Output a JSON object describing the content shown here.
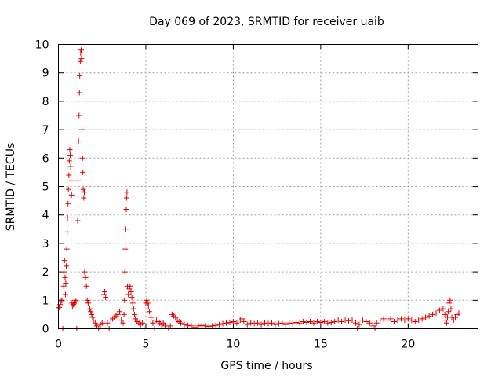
{
  "chart_data": {
    "type": "scatter",
    "title": "Day 069 of 2023, SRMTID for receiver uaib",
    "xlabel": "GPS time / hours",
    "ylabel": "SRMTID / TECUs",
    "xlim": [
      0,
      24
    ],
    "ylim": [
      0,
      10
    ],
    "xticks": [
      0,
      5,
      10,
      15,
      20
    ],
    "yticks": [
      0,
      1,
      2,
      3,
      4,
      5,
      6,
      7,
      8,
      9,
      10
    ],
    "grid": true,
    "marker": "plus",
    "color": "#e00000",
    "series": [
      {
        "name": "SRMTID",
        "points": [
          [
            0.0,
            0.7
          ],
          [
            0.05,
            0.75
          ],
          [
            0.1,
            0.85
          ],
          [
            0.15,
            0.95
          ],
          [
            0.2,
            1.0
          ],
          [
            0.25,
            0.0
          ],
          [
            0.3,
            1.5
          ],
          [
            0.32,
            2.0
          ],
          [
            0.35,
            2.4
          ],
          [
            0.38,
            1.8
          ],
          [
            0.4,
            1.2
          ],
          [
            0.42,
            1.6
          ],
          [
            0.45,
            2.2
          ],
          [
            0.48,
            2.8
          ],
          [
            0.5,
            3.4
          ],
          [
            0.52,
            3.9
          ],
          [
            0.55,
            4.4
          ],
          [
            0.57,
            4.9
          ],
          [
            0.6,
            5.4
          ],
          [
            0.62,
            5.9
          ],
          [
            0.65,
            6.3
          ],
          [
            0.67,
            6.1
          ],
          [
            0.7,
            5.7
          ],
          [
            0.72,
            5.2
          ],
          [
            0.75,
            4.7
          ],
          [
            0.78,
            0.9
          ],
          [
            0.8,
            0.8
          ],
          [
            0.85,
            0.85
          ],
          [
            0.9,
            0.9
          ],
          [
            0.95,
            1.0
          ],
          [
            1.0,
            0.95
          ],
          [
            1.05,
            0.0
          ],
          [
            1.1,
            3.8
          ],
          [
            1.12,
            5.2
          ],
          [
            1.15,
            6.6
          ],
          [
            1.18,
            7.5
          ],
          [
            1.2,
            8.3
          ],
          [
            1.22,
            8.9
          ],
          [
            1.25,
            9.4
          ],
          [
            1.27,
            9.7
          ],
          [
            1.3,
            9.8
          ],
          [
            1.32,
            9.5
          ],
          [
            1.35,
            7.0
          ],
          [
            1.38,
            6.0
          ],
          [
            1.4,
            5.5
          ],
          [
            1.42,
            4.9
          ],
          [
            1.45,
            4.6
          ],
          [
            1.48,
            4.8
          ],
          [
            1.5,
            2.0
          ],
          [
            1.55,
            1.8
          ],
          [
            1.6,
            1.5
          ],
          [
            1.65,
            1.0
          ],
          [
            1.7,
            0.9
          ],
          [
            1.75,
            0.8
          ],
          [
            1.8,
            0.7
          ],
          [
            1.85,
            0.6
          ],
          [
            1.9,
            0.5
          ],
          [
            1.95,
            0.4
          ],
          [
            2.0,
            0.3
          ],
          [
            2.1,
            0.2
          ],
          [
            2.2,
            0.1
          ],
          [
            2.3,
            0.0
          ],
          [
            2.4,
            0.15
          ],
          [
            2.5,
            0.2
          ],
          [
            2.6,
            1.2
          ],
          [
            2.65,
            1.3
          ],
          [
            2.7,
            1.1
          ],
          [
            2.8,
            0.2
          ],
          [
            2.9,
            0.0
          ],
          [
            3.0,
            0.3
          ],
          [
            3.1,
            0.35
          ],
          [
            3.2,
            0.4
          ],
          [
            3.3,
            0.45
          ],
          [
            3.4,
            0.5
          ],
          [
            3.5,
            0.6
          ],
          [
            3.6,
            0.3
          ],
          [
            3.7,
            0.2
          ],
          [
            3.75,
            0.5
          ],
          [
            3.78,
            1.0
          ],
          [
            3.8,
            2.0
          ],
          [
            3.82,
            2.8
          ],
          [
            3.85,
            3.5
          ],
          [
            3.88,
            4.2
          ],
          [
            3.9,
            4.6
          ],
          [
            3.92,
            4.8
          ],
          [
            3.95,
            1.5
          ],
          [
            4.0,
            1.2
          ],
          [
            4.05,
            1.4
          ],
          [
            4.1,
            1.5
          ],
          [
            4.15,
            1.3
          ],
          [
            4.2,
            1.1
          ],
          [
            4.25,
            0.9
          ],
          [
            4.3,
            0.7
          ],
          [
            4.35,
            0.5
          ],
          [
            4.4,
            0.35
          ],
          [
            4.5,
            0.25
          ],
          [
            4.6,
            0.2
          ],
          [
            4.7,
            0.15
          ],
          [
            4.8,
            0.2
          ],
          [
            4.9,
            0.0
          ],
          [
            5.0,
            0.9
          ],
          [
            5.05,
            1.0
          ],
          [
            5.1,
            0.9
          ],
          [
            5.15,
            0.8
          ],
          [
            5.2,
            0.6
          ],
          [
            5.3,
            0.4
          ],
          [
            5.4,
            0.2
          ],
          [
            5.5,
            0.0
          ],
          [
            5.6,
            0.3
          ],
          [
            5.7,
            0.25
          ],
          [
            5.8,
            0.2
          ],
          [
            5.9,
            0.15
          ],
          [
            6.0,
            0.2
          ],
          [
            6.1,
            0.1
          ],
          [
            6.3,
            0.0
          ],
          [
            6.4,
            0.1
          ],
          [
            6.5,
            0.5
          ],
          [
            6.6,
            0.45
          ],
          [
            6.7,
            0.4
          ],
          [
            6.8,
            0.3
          ],
          [
            6.9,
            0.25
          ],
          [
            7.0,
            0.2
          ],
          [
            7.2,
            0.15
          ],
          [
            7.4,
            0.12
          ],
          [
            7.6,
            0.1
          ],
          [
            7.8,
            0.05
          ],
          [
            8.0,
            0.1
          ],
          [
            8.2,
            0.12
          ],
          [
            8.4,
            0.1
          ],
          [
            8.6,
            0.08
          ],
          [
            8.8,
            0.1
          ],
          [
            9.0,
            0.12
          ],
          [
            9.2,
            0.15
          ],
          [
            9.4,
            0.18
          ],
          [
            9.6,
            0.2
          ],
          [
            9.8,
            0.22
          ],
          [
            10.0,
            0.25
          ],
          [
            10.2,
            0.2
          ],
          [
            10.4,
            0.3
          ],
          [
            10.5,
            0.35
          ],
          [
            10.6,
            0.25
          ],
          [
            10.8,
            0.15
          ],
          [
            11.0,
            0.2
          ],
          [
            11.2,
            0.18
          ],
          [
            11.4,
            0.2
          ],
          [
            11.6,
            0.15
          ],
          [
            11.8,
            0.2
          ],
          [
            12.0,
            0.18
          ],
          [
            12.2,
            0.2
          ],
          [
            12.4,
            0.15
          ],
          [
            12.6,
            0.18
          ],
          [
            12.8,
            0.2
          ],
          [
            13.0,
            0.15
          ],
          [
            13.2,
            0.2
          ],
          [
            13.4,
            0.18
          ],
          [
            13.6,
            0.22
          ],
          [
            13.8,
            0.2
          ],
          [
            14.0,
            0.25
          ],
          [
            14.2,
            0.22
          ],
          [
            14.4,
            0.25
          ],
          [
            14.6,
            0.2
          ],
          [
            14.8,
            0.25
          ],
          [
            15.0,
            0.22
          ],
          [
            15.2,
            0.25
          ],
          [
            15.4,
            0.2
          ],
          [
            15.6,
            0.22
          ],
          [
            15.8,
            0.25
          ],
          [
            16.0,
            0.3
          ],
          [
            16.2,
            0.25
          ],
          [
            16.4,
            0.3
          ],
          [
            16.6,
            0.28
          ],
          [
            16.8,
            0.3
          ],
          [
            17.0,
            0.2
          ],
          [
            17.1,
            0.0
          ],
          [
            17.2,
            0.15
          ],
          [
            17.4,
            0.3
          ],
          [
            17.6,
            0.25
          ],
          [
            17.8,
            0.2
          ],
          [
            18.0,
            0.1
          ],
          [
            18.1,
            0.0
          ],
          [
            18.2,
            0.2
          ],
          [
            18.4,
            0.3
          ],
          [
            18.6,
            0.35
          ],
          [
            18.8,
            0.3
          ],
          [
            19.0,
            0.35
          ],
          [
            19.2,
            0.25
          ],
          [
            19.4,
            0.3
          ],
          [
            19.6,
            0.35
          ],
          [
            19.8,
            0.3
          ],
          [
            20.0,
            0.35
          ],
          [
            20.2,
            0.3
          ],
          [
            20.4,
            0.25
          ],
          [
            20.6,
            0.3
          ],
          [
            20.8,
            0.35
          ],
          [
            21.0,
            0.4
          ],
          [
            21.2,
            0.45
          ],
          [
            21.4,
            0.5
          ],
          [
            21.6,
            0.55
          ],
          [
            21.8,
            0.65
          ],
          [
            22.0,
            0.7
          ],
          [
            22.1,
            0.5
          ],
          [
            22.15,
            0.3
          ],
          [
            22.2,
            0.2
          ],
          [
            22.25,
            0.4
          ],
          [
            22.3,
            0.6
          ],
          [
            22.35,
            0.9
          ],
          [
            22.4,
            1.0
          ],
          [
            22.45,
            0.7
          ],
          [
            22.5,
            0.4
          ],
          [
            22.6,
            0.3
          ],
          [
            22.7,
            0.4
          ],
          [
            22.8,
            0.5
          ],
          [
            22.9,
            0.55
          ]
        ]
      }
    ]
  }
}
